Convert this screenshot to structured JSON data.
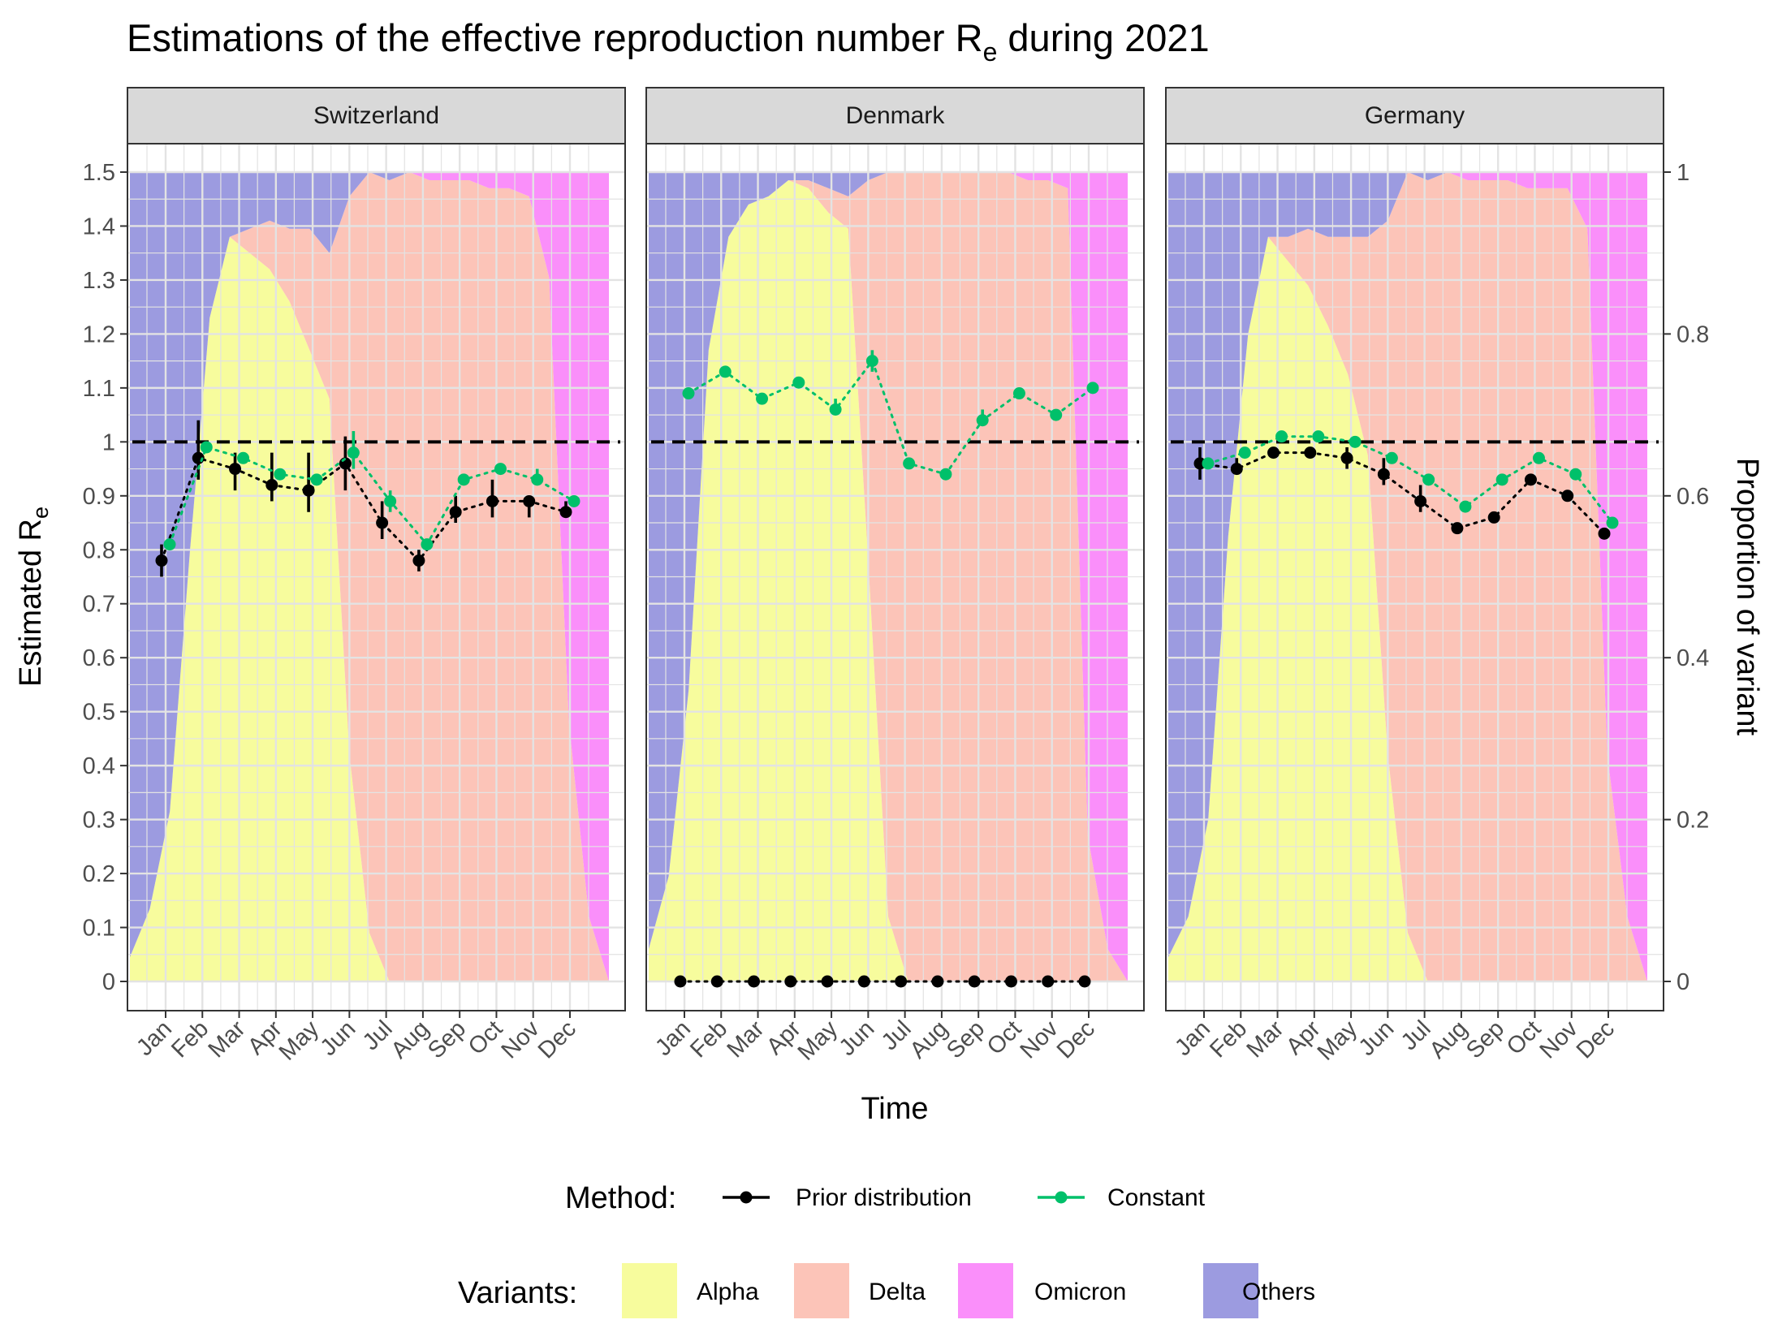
{
  "chart_data": {
    "type": "line",
    "title": "Estimations of the effective reproduction number R",
    "title_subscript": "e",
    "title_suffix": " during 2021",
    "xlabel": "Time",
    "ylabel": "Estimated R",
    "ylabel_subscript": "e",
    "y2label": "Proportion of variant",
    "ylim": [
      0,
      1.5
    ],
    "y2lim": [
      0,
      1
    ],
    "yticks": [
      0,
      0.1,
      0.2,
      0.3,
      0.4,
      0.5,
      0.6,
      0.7,
      0.8,
      0.9,
      1,
      1.1,
      1.2,
      1.3,
      1.4,
      1.5
    ],
    "ytick_labels": [
      "0",
      "0.1",
      "0.2",
      "0.3",
      "0.4",
      "0.5",
      "0.6",
      "0.7",
      "0.8",
      "0.9",
      "1",
      "1.1",
      "1.2",
      "1.3",
      "1.4",
      "1.5"
    ],
    "y2ticks": [
      0,
      0.2,
      0.4,
      0.6,
      0.8,
      1
    ],
    "y2tick_labels": [
      "0",
      "0.2",
      "0.4",
      "0.6",
      "0.8",
      "1"
    ],
    "months": [
      "Jan",
      "Feb",
      "Mar",
      "Apr",
      "May",
      "Jun",
      "Jul",
      "Aug",
      "Sep",
      "Oct",
      "Nov",
      "Dec"
    ],
    "reference_line": 1,
    "grid": true,
    "legend_position": "bottom",
    "method_legend": {
      "title": "Method:",
      "items": [
        {
          "name": "Prior distribution",
          "color": "#000000"
        },
        {
          "name": "Constant",
          "color": "#00c06a"
        }
      ]
    },
    "variant_legend": {
      "title": "Variants:",
      "items": [
        {
          "name": "Alpha",
          "color": "#f7fc9d"
        },
        {
          "name": "Delta",
          "color": "#fcc4b8"
        },
        {
          "name": "Omicron",
          "color": "#fa8ffa"
        },
        {
          "name": "Others",
          "color": "#9c9be0"
        }
      ]
    },
    "panels": [
      {
        "name": "Switzerland",
        "variant_x": [
          0,
          0.5,
          1,
          1.5,
          2,
          2.5,
          3,
          3.5,
          4,
          4.5,
          5,
          5.5,
          6,
          6.5,
          7,
          7.5,
          8,
          8.5,
          9,
          9.5,
          10,
          10.5,
          11,
          11.5,
          12
        ],
        "variant_proportions": {
          "Alpha": [
            0.03,
            0.09,
            0.21,
            0.53,
            0.82,
            0.92,
            0.9,
            0.88,
            0.84,
            0.78,
            0.72,
            0.28,
            0.06,
            0.0,
            0.0,
            0.0,
            0.0,
            0.0,
            0.0,
            0.0,
            0.0,
            0.0,
            0.0,
            0.0,
            0.0
          ],
          "Delta": [
            0.0,
            0.0,
            0.0,
            0.0,
            0.0,
            0.0,
            0.03,
            0.06,
            0.09,
            0.15,
            0.18,
            0.69,
            0.94,
            0.99,
            1.0,
            0.99,
            0.99,
            0.99,
            0.98,
            0.98,
            0.97,
            0.87,
            0.32,
            0.08,
            0.0
          ],
          "Omicron": [
            0.0,
            0.0,
            0.0,
            0.0,
            0.0,
            0.0,
            0.0,
            0.0,
            0.0,
            0.0,
            0.0,
            0.0,
            0.0,
            0.0,
            0.0,
            0.01,
            0.01,
            0.01,
            0.02,
            0.02,
            0.03,
            0.13,
            0.68,
            0.92,
            1.0
          ],
          "Others": [
            0.97,
            0.91,
            0.79,
            0.47,
            0.18,
            0.08,
            0.07,
            0.06,
            0.07,
            0.07,
            0.1,
            0.03,
            0.0,
            0.01,
            0.0,
            0.0,
            0.0,
            0.0,
            0.0,
            0.0,
            0.0,
            0.0,
            0.0,
            0.0,
            0.0
          ]
        },
        "prior_distribution": [
          {
            "x": "Jan",
            "y": 0.78,
            "lo": 0.75,
            "hi": 0.81
          },
          {
            "x": "Feb",
            "y": 0.97,
            "lo": 0.93,
            "hi": 1.04
          },
          {
            "x": "Mar",
            "y": 0.95,
            "lo": 0.91,
            "hi": 0.98
          },
          {
            "x": "Apr",
            "y": 0.92,
            "lo": 0.89,
            "hi": 0.98
          },
          {
            "x": "May",
            "y": 0.91,
            "lo": 0.87,
            "hi": 0.98
          },
          {
            "x": "Jun",
            "y": 0.96,
            "lo": 0.91,
            "hi": 1.01
          },
          {
            "x": "Jul",
            "y": 0.85,
            "lo": 0.82,
            "hi": 0.89
          },
          {
            "x": "Aug",
            "y": 0.78,
            "lo": 0.76,
            "hi": 0.8
          },
          {
            "x": "Sep",
            "y": 0.87,
            "lo": 0.85,
            "hi": 0.9
          },
          {
            "x": "Oct",
            "y": 0.89,
            "lo": 0.86,
            "hi": 0.93
          },
          {
            "x": "Nov",
            "y": 0.89,
            "lo": 0.86,
            "hi": 0.9
          },
          {
            "x": "Dec",
            "y": 0.87,
            "lo": 0.86,
            "hi": 0.89
          }
        ],
        "constant": [
          {
            "x": "Jan",
            "y": 0.81,
            "lo": 0.8,
            "hi": 0.82
          },
          {
            "x": "Feb",
            "y": 0.99,
            "lo": 0.98,
            "hi": 1.0
          },
          {
            "x": "Mar",
            "y": 0.97,
            "lo": 0.96,
            "hi": 0.98
          },
          {
            "x": "Apr",
            "y": 0.94,
            "lo": 0.93,
            "hi": 0.95
          },
          {
            "x": "May",
            "y": 0.93,
            "lo": 0.92,
            "hi": 0.94
          },
          {
            "x": "Jun",
            "y": 0.98,
            "lo": 0.95,
            "hi": 1.02
          },
          {
            "x": "Jul",
            "y": 0.89,
            "lo": 0.87,
            "hi": 0.91
          },
          {
            "x": "Aug",
            "y": 0.81,
            "lo": 0.8,
            "hi": 0.82
          },
          {
            "x": "Sep",
            "y": 0.93,
            "lo": 0.92,
            "hi": 0.94
          },
          {
            "x": "Oct",
            "y": 0.95,
            "lo": 0.94,
            "hi": 0.96
          },
          {
            "x": "Nov",
            "y": 0.93,
            "lo": 0.92,
            "hi": 0.95
          },
          {
            "x": "Dec",
            "y": 0.89,
            "lo": 0.88,
            "hi": 0.9
          }
        ]
      },
      {
        "name": "Denmark",
        "variant_x": [
          0,
          0.5,
          1,
          1.5,
          2,
          2.5,
          3,
          3.5,
          4,
          4.5,
          5,
          5.5,
          6,
          6.5,
          7,
          7.5,
          8,
          8.5,
          9,
          9.5,
          10,
          10.5,
          11,
          11.5,
          12
        ],
        "variant_proportions": {
          "Alpha": [
            0.04,
            0.13,
            0.36,
            0.78,
            0.92,
            0.96,
            0.97,
            0.99,
            0.98,
            0.95,
            0.93,
            0.52,
            0.08,
            0.0,
            0.0,
            0.0,
            0.0,
            0.0,
            0.0,
            0.0,
            0.0,
            0.0,
            0.0,
            0.0,
            0.0
          ],
          "Delta": [
            0.0,
            0.0,
            0.0,
            0.0,
            0.0,
            0.0,
            0.0,
            0.0,
            0.01,
            0.03,
            0.04,
            0.47,
            0.92,
            1.0,
            1.0,
            1.0,
            1.0,
            1.0,
            1.0,
            0.99,
            0.99,
            0.98,
            0.18,
            0.04,
            0.0
          ],
          "Omicron": [
            0.0,
            0.0,
            0.0,
            0.0,
            0.0,
            0.0,
            0.0,
            0.0,
            0.0,
            0.0,
            0.0,
            0.0,
            0.0,
            0.0,
            0.0,
            0.0,
            0.0,
            0.0,
            0.0,
            0.01,
            0.01,
            0.02,
            0.82,
            0.96,
            1.0
          ],
          "Others": [
            0.96,
            0.87,
            0.64,
            0.22,
            0.08,
            0.04,
            0.03,
            0.01,
            0.01,
            0.02,
            0.03,
            0.01,
            0.0,
            0.0,
            0.0,
            0.0,
            0.0,
            0.0,
            0.0,
            0.0,
            0.0,
            0.0,
            0.0,
            0.0,
            0.0
          ]
        },
        "prior_distribution": [
          {
            "x": "Jan",
            "y": 0,
            "lo": 0,
            "hi": 0
          },
          {
            "x": "Feb",
            "y": 0,
            "lo": 0,
            "hi": 0
          },
          {
            "x": "Mar",
            "y": 0,
            "lo": 0,
            "hi": 0
          },
          {
            "x": "Apr",
            "y": 0,
            "lo": 0,
            "hi": 0
          },
          {
            "x": "May",
            "y": 0,
            "lo": 0,
            "hi": 0
          },
          {
            "x": "Jun",
            "y": 0,
            "lo": 0,
            "hi": 0
          },
          {
            "x": "Jul",
            "y": 0,
            "lo": 0,
            "hi": 0
          },
          {
            "x": "Aug",
            "y": 0,
            "lo": 0,
            "hi": 0
          },
          {
            "x": "Sep",
            "y": 0,
            "lo": 0,
            "hi": 0
          },
          {
            "x": "Oct",
            "y": 0,
            "lo": 0,
            "hi": 0
          },
          {
            "x": "Nov",
            "y": 0,
            "lo": 0,
            "hi": 0
          },
          {
            "x": "Dec",
            "y": 0,
            "lo": 0,
            "hi": 0
          }
        ],
        "constant": [
          {
            "x": "Jan",
            "y": 1.09,
            "lo": 1.08,
            "hi": 1.1
          },
          {
            "x": "Feb",
            "y": 1.13,
            "lo": 1.12,
            "hi": 1.14
          },
          {
            "x": "Mar",
            "y": 1.08,
            "lo": 1.07,
            "hi": 1.09
          },
          {
            "x": "Apr",
            "y": 1.11,
            "lo": 1.1,
            "hi": 1.12
          },
          {
            "x": "May",
            "y": 1.06,
            "lo": 1.05,
            "hi": 1.08
          },
          {
            "x": "Jun",
            "y": 1.15,
            "lo": 1.13,
            "hi": 1.17
          },
          {
            "x": "Jul",
            "y": 0.96,
            "lo": 0.95,
            "hi": 0.97
          },
          {
            "x": "Aug",
            "y": 0.94,
            "lo": 0.93,
            "hi": 0.95
          },
          {
            "x": "Sep",
            "y": 1.04,
            "lo": 1.03,
            "hi": 1.06
          },
          {
            "x": "Oct",
            "y": 1.09,
            "lo": 1.08,
            "hi": 1.1
          },
          {
            "x": "Nov",
            "y": 1.05,
            "lo": 1.04,
            "hi": 1.06
          },
          {
            "x": "Dec",
            "y": 1.1,
            "lo": 1.09,
            "hi": 1.11
          }
        ]
      },
      {
        "name": "Germany",
        "variant_x": [
          0,
          0.5,
          1,
          1.5,
          2,
          2.5,
          3,
          3.5,
          4,
          4.5,
          5,
          5.5,
          6,
          6.5,
          7,
          7.5,
          8,
          8.5,
          9,
          9.5,
          10,
          10.5,
          11,
          11.5,
          12
        ],
        "variant_proportions": {
          "Alpha": [
            0.03,
            0.08,
            0.2,
            0.55,
            0.8,
            0.92,
            0.89,
            0.86,
            0.81,
            0.75,
            0.65,
            0.28,
            0.06,
            0.0,
            0.0,
            0.0,
            0.0,
            0.0,
            0.0,
            0.0,
            0.0,
            0.0,
            0.0,
            0.0,
            0.0
          ],
          "Delta": [
            0.0,
            0.0,
            0.0,
            0.0,
            0.0,
            0.0,
            0.03,
            0.07,
            0.11,
            0.17,
            0.27,
            0.66,
            0.94,
            0.99,
            1.0,
            0.99,
            0.99,
            0.99,
            0.98,
            0.98,
            0.98,
            0.93,
            0.28,
            0.08,
            0.0
          ],
          "Omicron": [
            0.0,
            0.0,
            0.0,
            0.0,
            0.0,
            0.0,
            0.0,
            0.0,
            0.0,
            0.0,
            0.0,
            0.0,
            0.0,
            0.0,
            0.0,
            0.01,
            0.01,
            0.01,
            0.02,
            0.02,
            0.02,
            0.07,
            0.72,
            0.92,
            1.0
          ],
          "Others": [
            0.97,
            0.92,
            0.8,
            0.45,
            0.2,
            0.08,
            0.08,
            0.07,
            0.08,
            0.08,
            0.08,
            0.06,
            0.0,
            0.01,
            0.0,
            0.0,
            0.0,
            0.0,
            0.0,
            0.0,
            0.0,
            0.0,
            0.0,
            0.0,
            0.0
          ]
        },
        "prior_distribution": [
          {
            "x": "Jan",
            "y": 0.96,
            "lo": 0.93,
            "hi": 0.99
          },
          {
            "x": "Feb",
            "y": 0.95,
            "lo": 0.94,
            "hi": 0.97
          },
          {
            "x": "Mar",
            "y": 0.98,
            "lo": 0.97,
            "hi": 0.99
          },
          {
            "x": "Apr",
            "y": 0.98,
            "lo": 0.97,
            "hi": 0.99
          },
          {
            "x": "May",
            "y": 0.97,
            "lo": 0.95,
            "hi": 0.99
          },
          {
            "x": "Jun",
            "y": 0.94,
            "lo": 0.92,
            "hi": 0.97
          },
          {
            "x": "Jul",
            "y": 0.89,
            "lo": 0.87,
            "hi": 0.92
          },
          {
            "x": "Aug",
            "y": 0.84,
            "lo": 0.83,
            "hi": 0.85
          },
          {
            "x": "Sep",
            "y": 0.86,
            "lo": 0.85,
            "hi": 0.87
          },
          {
            "x": "Oct",
            "y": 0.93,
            "lo": 0.92,
            "hi": 0.94
          },
          {
            "x": "Nov",
            "y": 0.9,
            "lo": 0.89,
            "hi": 0.91
          },
          {
            "x": "Dec",
            "y": 0.83,
            "lo": 0.82,
            "hi": 0.84
          }
        ],
        "constant": [
          {
            "x": "Jan",
            "y": 0.96,
            "lo": 0.95,
            "hi": 0.97
          },
          {
            "x": "Feb",
            "y": 0.98,
            "lo": 0.97,
            "hi": 0.99
          },
          {
            "x": "Mar",
            "y": 1.01,
            "lo": 1.0,
            "hi": 1.02
          },
          {
            "x": "Apr",
            "y": 1.01,
            "lo": 1.0,
            "hi": 1.02
          },
          {
            "x": "May",
            "y": 1.0,
            "lo": 0.99,
            "hi": 1.01
          },
          {
            "x": "Jun",
            "y": 0.97,
            "lo": 0.96,
            "hi": 0.98
          },
          {
            "x": "Jul",
            "y": 0.93,
            "lo": 0.92,
            "hi": 0.94
          },
          {
            "x": "Aug",
            "y": 0.88,
            "lo": 0.87,
            "hi": 0.89
          },
          {
            "x": "Sep",
            "y": 0.93,
            "lo": 0.92,
            "hi": 0.94
          },
          {
            "x": "Oct",
            "y": 0.97,
            "lo": 0.96,
            "hi": 0.98
          },
          {
            "x": "Nov",
            "y": 0.94,
            "lo": 0.93,
            "hi": 0.95
          },
          {
            "x": "Dec",
            "y": 0.85,
            "lo": 0.84,
            "hi": 0.86
          }
        ]
      }
    ]
  }
}
